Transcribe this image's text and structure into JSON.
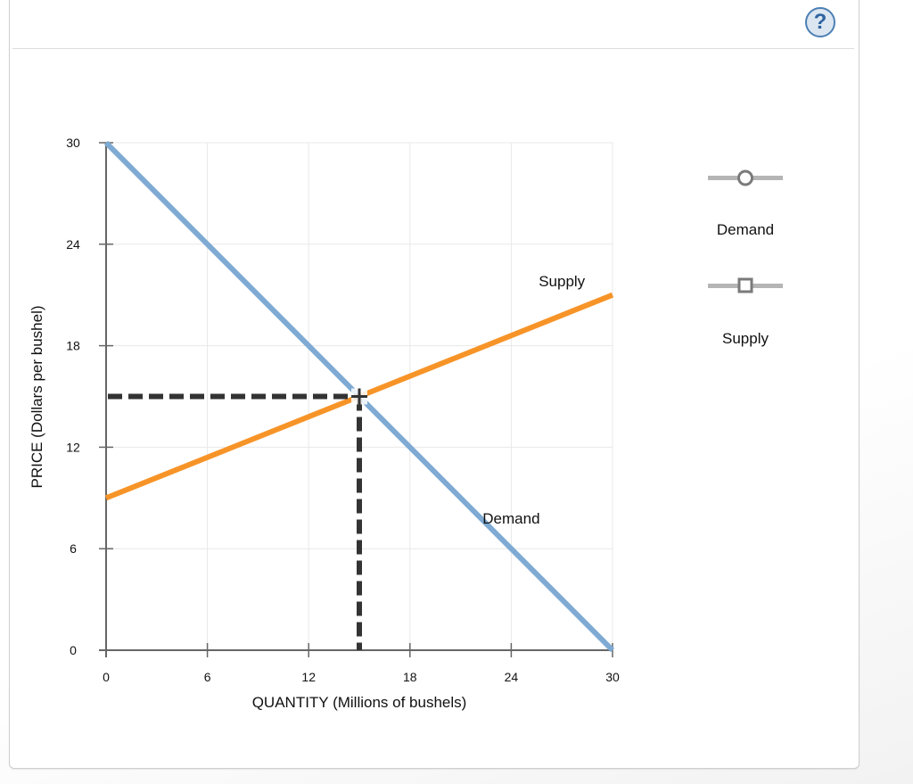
{
  "help_button": {
    "icon": "question-icon",
    "glyph": "?"
  },
  "chart_data": {
    "type": "line",
    "title": "",
    "xlabel": "QUANTITY (Millions of bushels)",
    "ylabel": "PRICE (Dollars per bushel)",
    "xlim": [
      0,
      30
    ],
    "ylim": [
      0,
      30
    ],
    "x_ticks": [
      0,
      6,
      12,
      18,
      24,
      30
    ],
    "y_ticks": [
      0,
      6,
      12,
      18,
      24,
      30
    ],
    "grid": true,
    "legend_position": "right",
    "series": [
      {
        "name": "Demand",
        "color": "#7eaad3",
        "points": [
          [
            0,
            30
          ],
          [
            30,
            0
          ]
        ],
        "label": "Demand",
        "label_at": [
          24,
          7.5
        ],
        "marker": "circle"
      },
      {
        "name": "Supply",
        "color": "#f79428",
        "points": [
          [
            0,
            9
          ],
          [
            30,
            21
          ]
        ],
        "label": "Supply",
        "label_at": [
          27,
          21.5
        ],
        "marker": "square"
      }
    ],
    "equilibrium": {
      "x": 15,
      "y": 15,
      "guide_color": "#333333",
      "style": "dashed"
    }
  },
  "legend": {
    "items": [
      {
        "label": "Demand",
        "marker": "circle"
      },
      {
        "label": "Supply",
        "marker": "square"
      }
    ]
  }
}
